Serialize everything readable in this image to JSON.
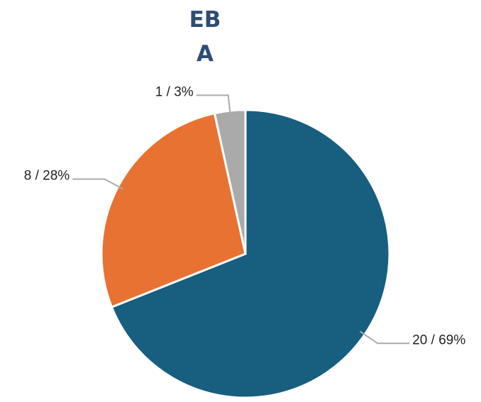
{
  "chart_data": {
    "type": "pie",
    "title": "EB A",
    "categories": [
      null,
      null,
      null
    ],
    "values": [
      20,
      8,
      1
    ],
    "value_labels": [
      "20 / 69%",
      "8 / 28%",
      "1 / 3%"
    ],
    "colors": [
      "#175e7f",
      "#e87232",
      "#aaaaaa"
    ]
  }
}
